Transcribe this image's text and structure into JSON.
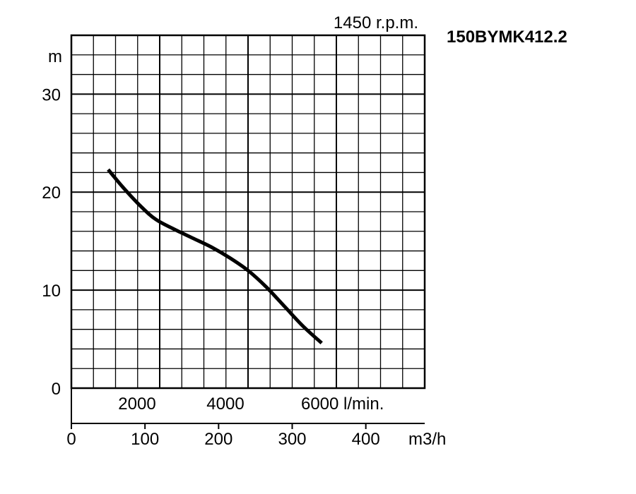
{
  "chart_data": {
    "type": "line",
    "title": "150BYMK412.2",
    "speed_label": "1450 r.p.m.",
    "ylabel": "m",
    "ylim": [
      0,
      36
    ],
    "y_ticks": [
      0,
      10,
      20,
      30
    ],
    "x_secondary_unit": "l/min.",
    "x_secondary_ticks": [
      2000,
      4000,
      6000
    ],
    "x_secondary_tick_labels": [
      "2000",
      "4000",
      "6000 l/min."
    ],
    "xlabel": "m3/h",
    "xlim": [
      0,
      480
    ],
    "x_ticks": [
      0,
      100,
      200,
      300,
      400
    ],
    "grid": true,
    "series": [
      {
        "x": [
          50,
          70,
          95,
          115,
          140,
          165,
          190,
          215,
          240,
          265,
          290,
          315,
          340
        ],
        "y": [
          22.3,
          20.5,
          18.5,
          17.2,
          16.2,
          15.3,
          14.4,
          13.3,
          12.0,
          10.3,
          8.3,
          6.3,
          4.6
        ]
      }
    ]
  }
}
